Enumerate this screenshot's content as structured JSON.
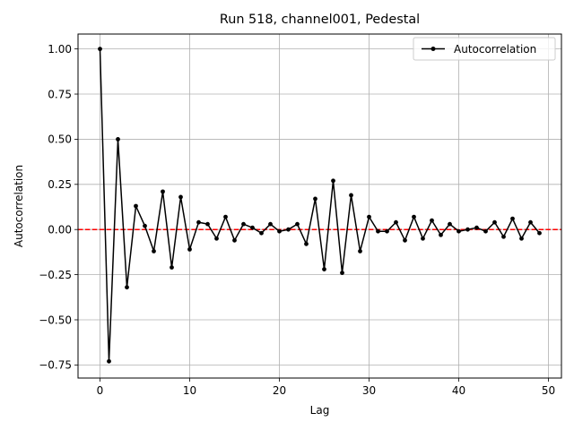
{
  "chart_data": {
    "type": "line",
    "title": "Run 518, channel001, Pedestal",
    "xlabel": "Lag",
    "ylabel": "Autocorrelation",
    "xlim": [
      -2.45,
      51.45
    ],
    "ylim": [
      -0.8225,
      1.0825
    ],
    "xticks": [
      0,
      10,
      20,
      30,
      40,
      50
    ],
    "xtick_labels": [
      "0",
      "10",
      "20",
      "30",
      "40",
      "50"
    ],
    "yticks": [
      -0.75,
      -0.5,
      -0.25,
      0.0,
      0.25,
      0.5,
      0.75,
      1.0
    ],
    "ytick_labels": [
      "−0.75",
      "−0.50",
      "−0.25",
      "0.00",
      "0.25",
      "0.50",
      "0.75",
      "1.00"
    ],
    "grid": true,
    "legend_position": "upper right",
    "series": [
      {
        "name": "Autocorrelation",
        "color": "#000000",
        "marker": "circle",
        "x": [
          0,
          1,
          2,
          3,
          4,
          5,
          6,
          7,
          8,
          9,
          10,
          11,
          12,
          13,
          14,
          15,
          16,
          17,
          18,
          19,
          20,
          21,
          22,
          23,
          24,
          25,
          26,
          27,
          28,
          29,
          30,
          31,
          32,
          33,
          34,
          35,
          36,
          37,
          38,
          39,
          40,
          41,
          42,
          43,
          44,
          45,
          46,
          47,
          48,
          49
        ],
        "values": [
          1.0,
          -0.73,
          0.5,
          -0.32,
          0.13,
          0.02,
          -0.12,
          0.21,
          -0.21,
          0.18,
          -0.11,
          0.04,
          0.03,
          -0.05,
          0.07,
          -0.06,
          0.03,
          0.01,
          -0.02,
          0.03,
          -0.01,
          0.0,
          0.03,
          -0.08,
          0.17,
          -0.22,
          0.27,
          -0.24,
          0.19,
          -0.12,
          0.07,
          -0.01,
          -0.01,
          0.04,
          -0.06,
          0.07,
          -0.05,
          0.05,
          -0.03,
          0.03,
          -0.01,
          0.0,
          0.01,
          -0.01,
          0.04,
          -0.04,
          0.06,
          -0.05,
          0.04,
          -0.02
        ]
      }
    ],
    "reference_line": {
      "y": 0.0,
      "color": "#ff0000",
      "style": "dashed"
    }
  }
}
